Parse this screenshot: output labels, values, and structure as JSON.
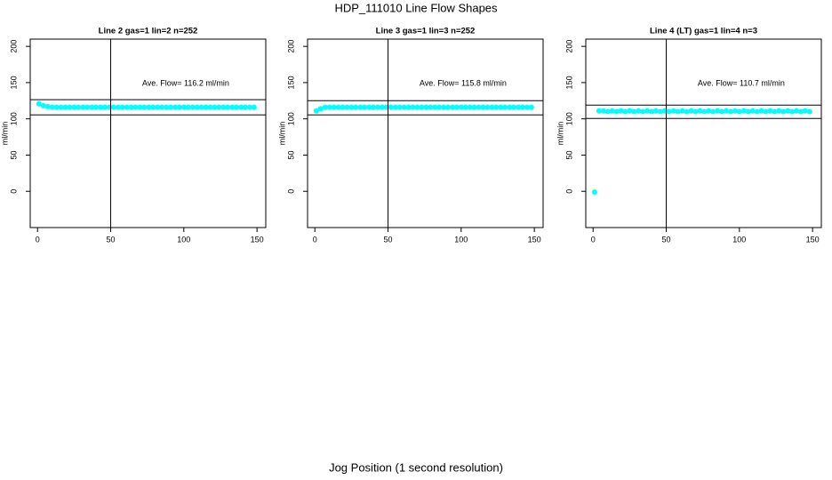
{
  "title": "HDP_111010  Line Flow Shapes",
  "xlabel": "Jog Position (1 second resolution)",
  "chart_data": [
    {
      "type": "scatter",
      "title": "Line 2 gas=1 lin=2 n=252",
      "ylabel": "ml/min",
      "annotation": "Ave. Flow=  116.2  ml/min",
      "color": "#00ffff",
      "xlim": [
        -5,
        156
      ],
      "ylim": [
        -50,
        210
      ],
      "xticks": [
        0,
        50,
        100,
        150
      ],
      "yticks": [
        0,
        50,
        100,
        150,
        200
      ],
      "hlines": [
        126.4,
        105.5
      ],
      "vlines": [
        50
      ],
      "x": [
        1,
        4,
        7,
        10,
        13,
        16,
        19,
        22,
        25,
        28,
        31,
        34,
        37,
        40,
        43,
        46,
        49,
        52,
        55,
        58,
        61,
        64,
        67,
        70,
        73,
        76,
        79,
        82,
        85,
        88,
        91,
        94,
        97,
        100,
        103,
        106,
        109,
        112,
        115,
        118,
        121,
        124,
        127,
        130,
        133,
        136,
        139,
        142,
        145,
        148
      ],
      "values": [
        121,
        118,
        117,
        116,
        116,
        116,
        116,
        116,
        116,
        116,
        116,
        116,
        116,
        116,
        116,
        116,
        116,
        116,
        116,
        116,
        116,
        116,
        116,
        116,
        116,
        116,
        116,
        116,
        116,
        116,
        116,
        116,
        116,
        116,
        116,
        116,
        116,
        116,
        116,
        116,
        116,
        116,
        116,
        116,
        116,
        116,
        116,
        116,
        116,
        116
      ]
    },
    {
      "type": "scatter",
      "title": "Line 3 gas=1 lin=3 n=252",
      "ylabel": "ml/min",
      "annotation": "Ave. Flow=  115.8  ml/min",
      "color": "#00ffff",
      "xlim": [
        -5,
        156
      ],
      "ylim": [
        -50,
        210
      ],
      "xticks": [
        0,
        50,
        100,
        150
      ],
      "yticks": [
        0,
        50,
        100,
        150,
        200
      ],
      "hlines": [
        125,
        105.5
      ],
      "vlines": [
        50
      ],
      "x": [
        1,
        4,
        7,
        10,
        13,
        16,
        19,
        22,
        25,
        28,
        31,
        34,
        37,
        40,
        43,
        46,
        49,
        52,
        55,
        58,
        61,
        64,
        67,
        70,
        73,
        76,
        79,
        82,
        85,
        88,
        91,
        94,
        97,
        100,
        103,
        106,
        109,
        112,
        115,
        118,
        121,
        124,
        127,
        130,
        133,
        136,
        139,
        142,
        145,
        148
      ],
      "values": [
        111,
        114,
        116,
        116,
        116,
        116,
        116,
        116,
        116,
        116,
        116,
        116,
        116,
        116,
        116,
        116,
        116,
        116,
        116,
        116,
        116,
        116,
        116,
        116,
        116,
        116,
        116,
        116,
        116,
        116,
        116,
        116,
        116,
        116,
        116,
        116,
        116,
        116,
        116,
        116,
        116,
        116,
        116,
        116,
        116,
        116,
        116,
        116,
        116,
        116
      ]
    },
    {
      "type": "scatter",
      "title": "Line 4 (LT) gas=1 lin=4 n=3",
      "ylabel": "ml/min",
      "annotation": "Ave. Flow=  110.7  ml/min",
      "color": "#00ffff",
      "xlim": [
        -5,
        156
      ],
      "ylim": [
        -50,
        210
      ],
      "xticks": [
        0,
        50,
        100,
        150
      ],
      "yticks": [
        0,
        50,
        100,
        150,
        200
      ],
      "hlines": [
        119,
        100.6
      ],
      "vlines": [
        50
      ],
      "x": [
        1,
        4,
        7,
        10,
        13,
        16,
        19,
        22,
        25,
        28,
        31,
        34,
        37,
        40,
        43,
        46,
        49,
        52,
        55,
        58,
        61,
        64,
        67,
        70,
        73,
        76,
        79,
        82,
        85,
        88,
        91,
        94,
        97,
        100,
        103,
        106,
        109,
        112,
        115,
        118,
        121,
        124,
        127,
        130,
        133,
        136,
        139,
        142,
        145,
        148
      ],
      "values": [
        -1,
        111,
        111,
        110,
        111,
        110,
        111,
        110,
        111,
        110,
        111,
        110,
        111,
        110,
        111,
        110,
        111,
        110,
        111,
        110,
        111,
        110,
        111,
        110,
        111,
        110,
        111,
        110,
        111,
        110,
        111,
        110,
        111,
        110,
        111,
        110,
        111,
        110,
        111,
        110,
        111,
        110,
        111,
        110,
        111,
        110,
        111,
        110,
        111,
        110
      ]
    }
  ]
}
